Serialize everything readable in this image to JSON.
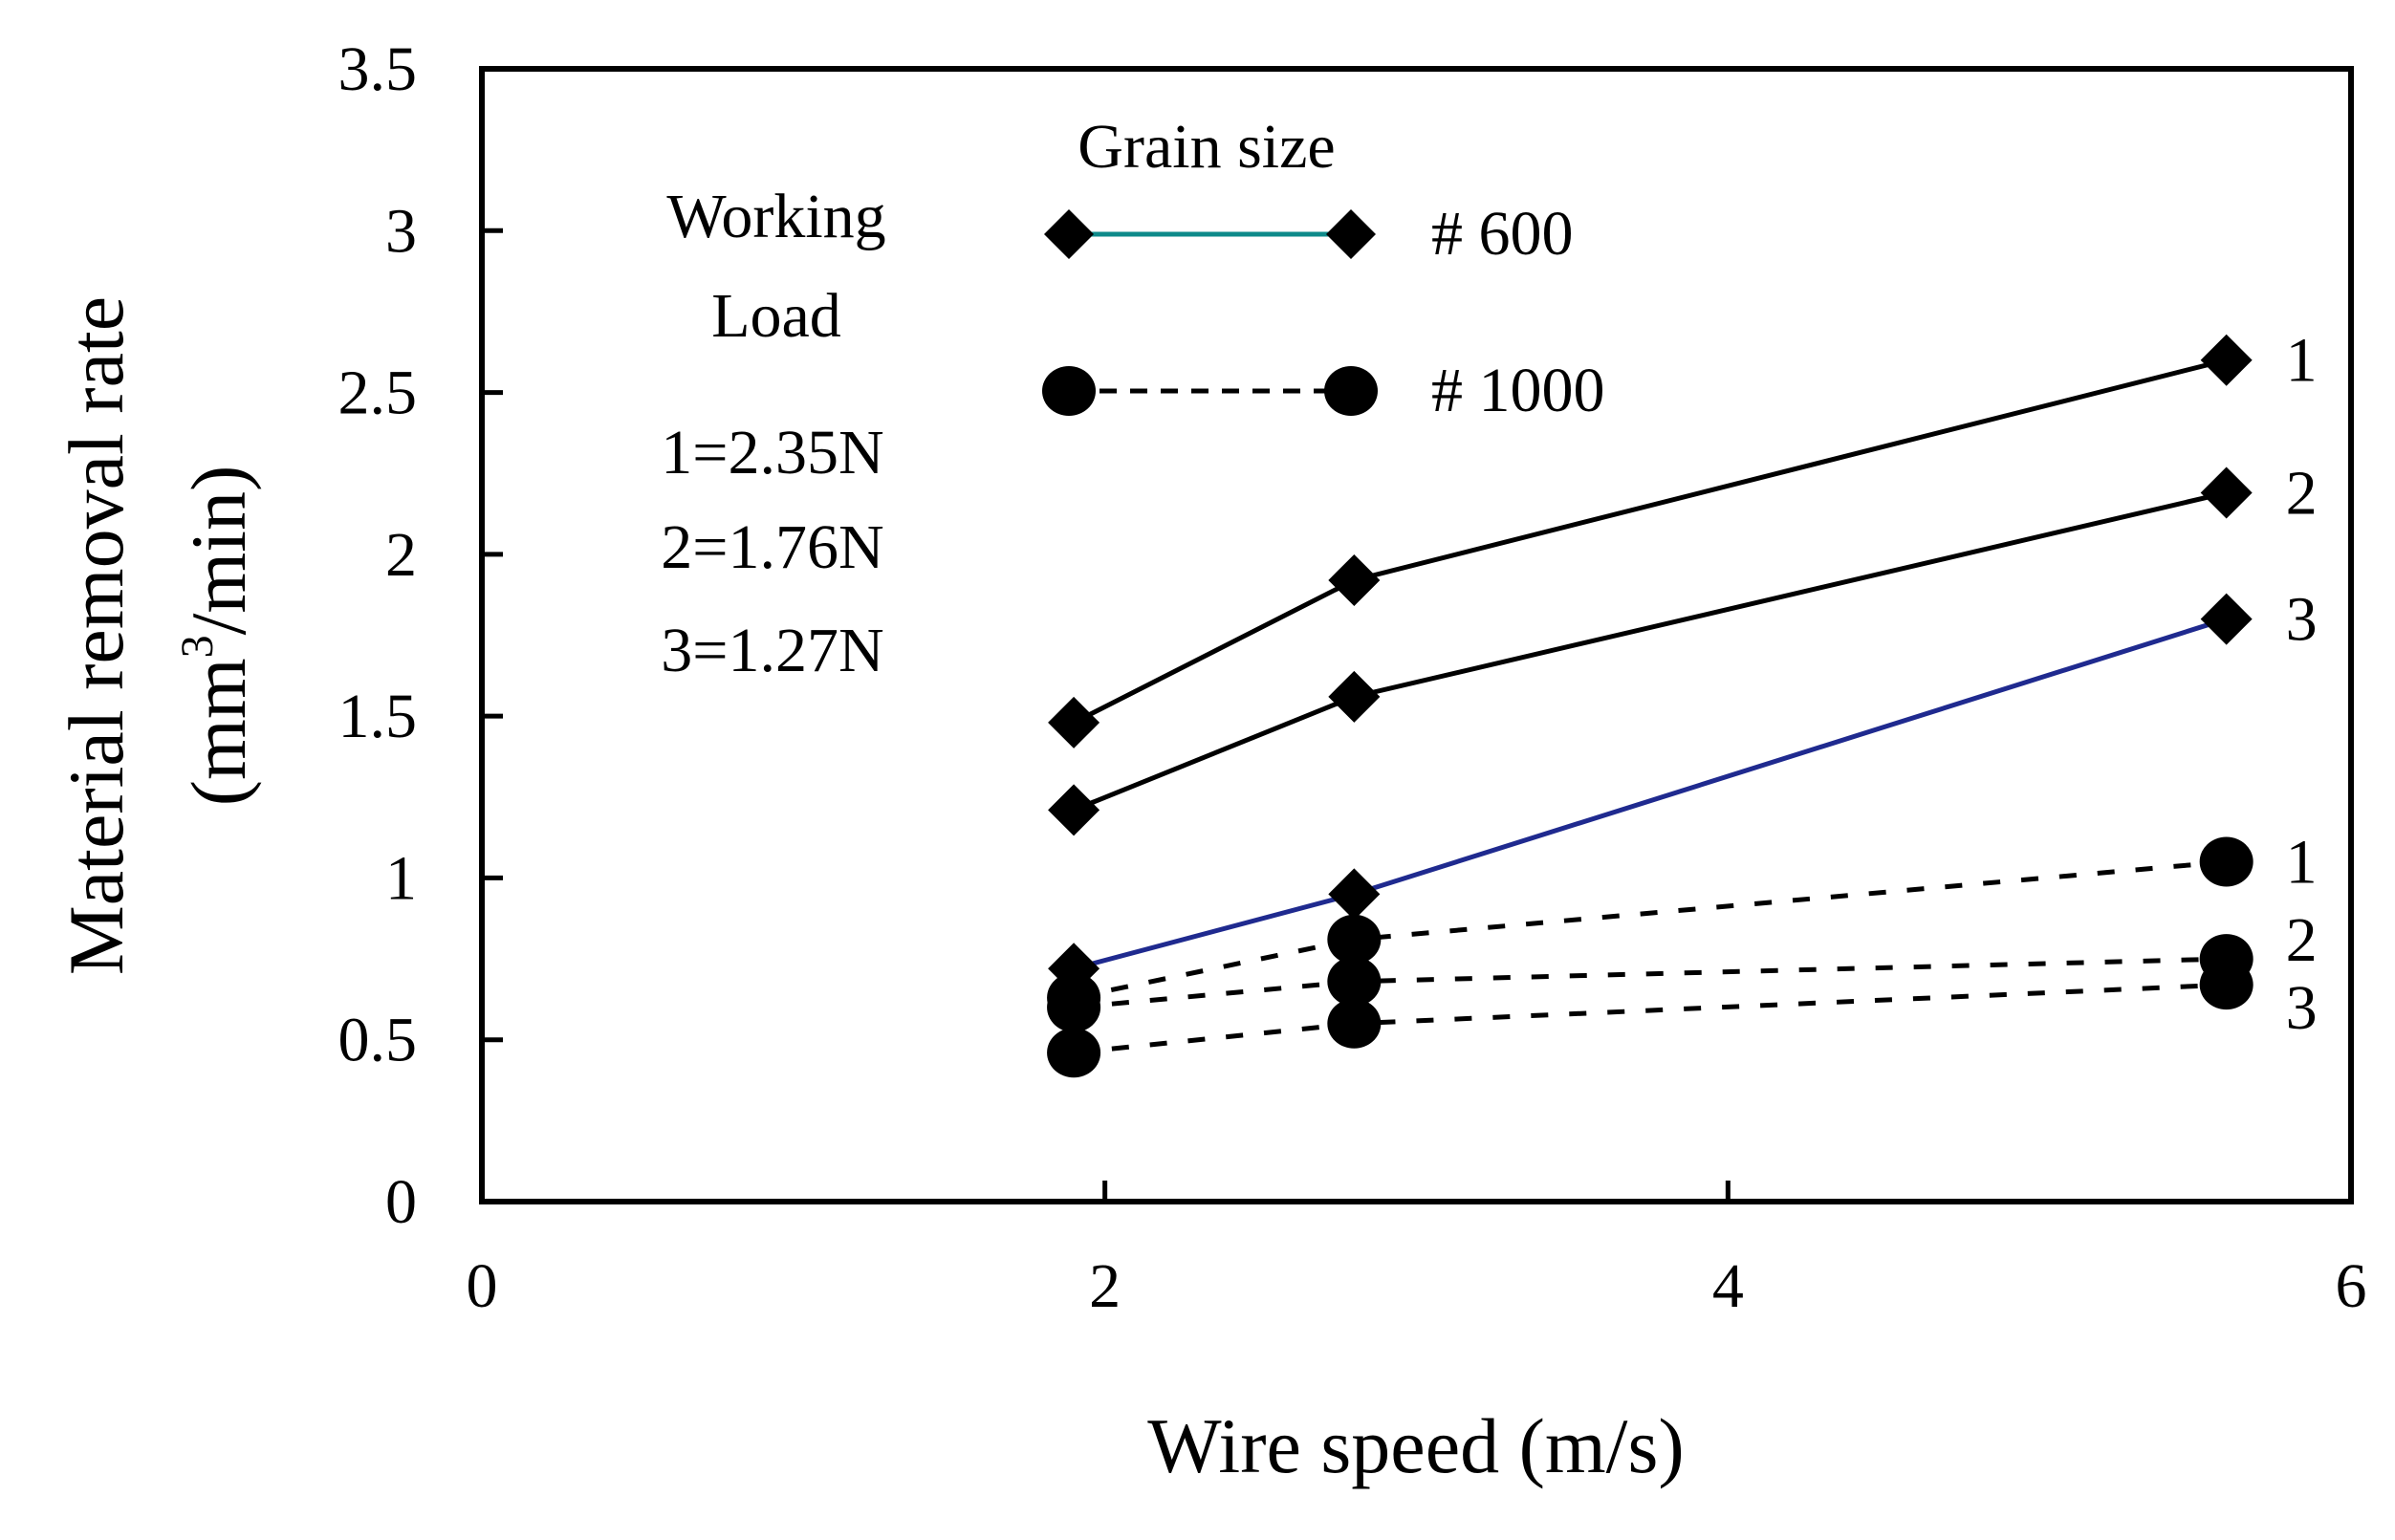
{
  "chart_data": {
    "type": "line",
    "title": "",
    "xlabel": "Wire speed (m/s)",
    "ylabel_line1": "Material removal rate",
    "ylabel_line2_prefix": "(mm",
    "ylabel_line2_sup": "3",
    "ylabel_line2_suffix": "/min)",
    "xlim": [
      0,
      6
    ],
    "ylim": [
      0,
      3.5
    ],
    "xticks": [
      "0",
      "2",
      "4",
      "6"
    ],
    "yticks": [
      "0",
      "0.5",
      "1",
      "1.5",
      "2",
      "2.5",
      "3",
      "3.5"
    ],
    "x": [
      1.9,
      2.8,
      5.6
    ],
    "series": [
      {
        "name": "# 600 load 1",
        "group": "600",
        "load": "1",
        "values": [
          1.48,
          1.92,
          2.6
        ],
        "color": "#000000",
        "marker": "diamond",
        "dash": false
      },
      {
        "name": "# 600 load 2",
        "group": "600",
        "load": "2",
        "values": [
          1.21,
          1.56,
          2.19
        ],
        "color": "#000000",
        "marker": "diamond",
        "dash": false
      },
      {
        "name": "# 600 load 3",
        "group": "600",
        "load": "3",
        "values": [
          0.72,
          0.95,
          1.8
        ],
        "color": "#1f2a8f",
        "marker": "diamond",
        "dash": false
      },
      {
        "name": "# 1000 load 1",
        "group": "1000",
        "load": "1",
        "values": [
          0.63,
          0.81,
          1.05
        ],
        "color": "#000000",
        "marker": "circle",
        "dash": true
      },
      {
        "name": "# 1000 load 2",
        "group": "1000",
        "load": "2",
        "values": [
          0.6,
          0.68,
          0.75
        ],
        "color": "#000000",
        "marker": "circle",
        "dash": true
      },
      {
        "name": "# 1000 load 3",
        "group": "1000",
        "load": "3",
        "values": [
          0.46,
          0.55,
          0.67
        ],
        "color": "#000000",
        "marker": "circle",
        "dash": true
      }
    ],
    "end_labels": [
      {
        "text": "1",
        "series": 0
      },
      {
        "text": "2",
        "series": 1
      },
      {
        "text": "3",
        "series": 2
      },
      {
        "text": "1",
        "series": 3
      },
      {
        "text": "2",
        "series": 4
      },
      {
        "text": "3",
        "series": 5
      }
    ],
    "legend": {
      "title": "Grain size",
      "entries": [
        {
          "label": "# 600",
          "marker": "diamond",
          "line_color": "#0e8a8a",
          "dash": false
        },
        {
          "label": "# 1000",
          "marker": "circle",
          "line_color": "#000000",
          "dash": true
        }
      ]
    },
    "annotation": {
      "title_line1": "Working",
      "title_line2": "Load",
      "lines": [
        "1=2.35N",
        "2=1.76N",
        "3=1.27N"
      ]
    }
  }
}
